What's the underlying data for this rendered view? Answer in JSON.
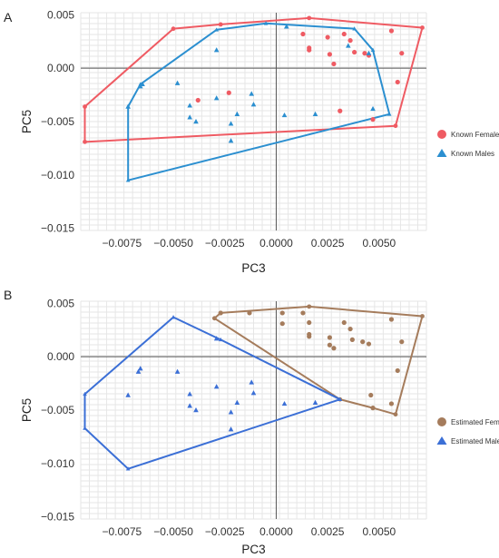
{
  "chart_data": [
    {
      "type": "scatter",
      "panel_label": "A",
      "xlabel": "PC3",
      "ylabel": "PC5",
      "xlim": [
        -0.0095,
        0.0073
      ],
      "ylim": [
        -0.0152,
        0.0052
      ],
      "x_ticks": [
        -0.0075,
        -0.005,
        -0.0025,
        0.0,
        0.0025,
        0.005
      ],
      "x_tick_labels": [
        "−0.0075",
        "−0.0050",
        "−0.0025",
        "0.0000",
        "0.0025",
        "0.0050"
      ],
      "y_ticks": [
        0.005,
        0.0,
        -0.005,
        -0.01,
        -0.015
      ],
      "y_tick_labels": [
        "0.005",
        "0.000",
        "−0.005",
        "−0.010",
        "−0.015"
      ],
      "grid": true,
      "legend_position": "right",
      "series": [
        {
          "name": "Known Females",
          "color": "#ef5b63",
          "marker": "circle",
          "points": [
            [
              -0.0038,
              -0.003
            ],
            [
              -0.0023,
              -0.0023
            ],
            [
              0.0016,
              0.0019
            ],
            [
              0.0016,
              0.0017
            ],
            [
              0.0026,
              0.0013
            ],
            [
              0.0028,
              0.0004
            ],
            [
              0.0033,
              0.0032
            ],
            [
              0.0031,
              -0.004
            ],
            [
              0.0038,
              0.0015
            ],
            [
              0.0043,
              0.0014
            ],
            [
              0.0045,
              0.0012
            ],
            [
              0.0047,
              -0.0048
            ],
            [
              0.0056,
              0.0035
            ],
            [
              0.0059,
              -0.0013
            ],
            [
              0.0061,
              0.0014
            ],
            [
              0.0036,
              0.0026
            ],
            [
              0.0025,
              0.0029
            ],
            [
              0.0013,
              0.0032
            ]
          ],
          "hull": [
            [
              -0.0093,
              -0.0069
            ],
            [
              -0.0093,
              -0.0036
            ],
            [
              -0.005,
              0.0037
            ],
            [
              -0.0027,
              0.0041
            ],
            [
              0.0016,
              0.0047
            ],
            [
              0.0071,
              0.0038
            ],
            [
              0.0058,
              -0.0054
            ]
          ]
        },
        {
          "name": "Known Males",
          "color": "#2b8fd0",
          "marker": "triangle",
          "points": [
            [
              -0.0072,
              -0.0036
            ],
            [
              -0.0066,
              -0.0017
            ],
            [
              -0.0065,
              -0.0015
            ],
            [
              -0.0048,
              -0.0014
            ],
            [
              -0.0042,
              -0.0035
            ],
            [
              -0.0042,
              -0.0046
            ],
            [
              -0.0039,
              -0.005
            ],
            [
              -0.0029,
              0.0017
            ],
            [
              -0.0029,
              -0.0028
            ],
            [
              -0.0022,
              -0.0052
            ],
            [
              -0.0019,
              -0.0043
            ],
            [
              -0.0012,
              -0.0024
            ],
            [
              -0.0011,
              -0.0034
            ],
            [
              -0.0022,
              -0.0068
            ],
            [
              0.0004,
              -0.0044
            ],
            [
              0.0019,
              -0.0043
            ],
            [
              0.0035,
              0.0021
            ],
            [
              0.0047,
              -0.0038
            ],
            [
              0.0045,
              0.0014
            ],
            [
              0.0005,
              0.0039
            ]
          ],
          "hull": [
            [
              -0.0072,
              -0.0105
            ],
            [
              -0.0072,
              -0.0036
            ],
            [
              -0.0066,
              -0.0015
            ],
            [
              -0.0029,
              0.0036
            ],
            [
              -0.0005,
              0.0042
            ],
            [
              0.0038,
              0.0037
            ],
            [
              0.0047,
              0.0017
            ],
            [
              0.0055,
              -0.0043
            ]
          ]
        }
      ]
    },
    {
      "type": "scatter",
      "panel_label": "B",
      "xlabel": "PC3",
      "ylabel": "PC5",
      "xlim": [
        -0.0095,
        0.0073
      ],
      "ylim": [
        -0.0152,
        0.0052
      ],
      "x_ticks": [
        -0.0075,
        -0.005,
        -0.0025,
        0.0,
        0.0025,
        0.005
      ],
      "x_tick_labels": [
        "−0.0075",
        "−0.0050",
        "−0.0025",
        "0.0000",
        "0.0025",
        "0.0050"
      ],
      "y_ticks": [
        0.005,
        0.0,
        -0.005,
        -0.01,
        -0.015
      ],
      "y_tick_labels": [
        "0.005",
        "0.000",
        "−0.005",
        "−0.010",
        "−0.015"
      ],
      "grid": true,
      "legend_position": "right",
      "series": [
        {
          "name": "Estimated Females",
          "color": "#a57c5c",
          "marker": "circle",
          "points": [
            [
              -0.0013,
              0.0041
            ],
            [
              -0.0027,
              0.0041
            ],
            [
              0.0003,
              0.0041
            ],
            [
              0.0003,
              0.0031
            ],
            [
              0.0013,
              0.0041
            ],
            [
              0.0016,
              0.0032
            ],
            [
              0.0016,
              0.0021
            ],
            [
              0.0016,
              0.0019
            ],
            [
              0.0026,
              0.0018
            ],
            [
              0.0028,
              0.0008
            ],
            [
              0.0033,
              0.0032
            ],
            [
              0.0036,
              0.0026
            ],
            [
              0.0037,
              0.0016
            ],
            [
              0.0042,
              0.0014
            ],
            [
              0.0045,
              0.0012
            ],
            [
              0.0046,
              -0.0036
            ],
            [
              0.0047,
              -0.0048
            ],
            [
              0.0056,
              0.0035
            ],
            [
              0.0056,
              -0.0044
            ],
            [
              0.0059,
              -0.0013
            ],
            [
              0.0061,
              0.0014
            ],
            [
              0.0026,
              0.0011
            ]
          ],
          "hull": [
            [
              -0.003,
              0.0036
            ],
            [
              -0.0027,
              0.0041
            ],
            [
              0.0016,
              0.0047
            ],
            [
              0.0071,
              0.0038
            ],
            [
              0.0058,
              -0.0054
            ],
            [
              0.0047,
              -0.0048
            ],
            [
              0.0031,
              -0.004
            ]
          ]
        },
        {
          "name": "Estimated Males",
          "color": "#3b6fd6",
          "marker": "triangle",
          "points": [
            [
              -0.0072,
              -0.0036
            ],
            [
              -0.0067,
              -0.0014
            ],
            [
              -0.0066,
              -0.0011
            ],
            [
              -0.0048,
              -0.0014
            ],
            [
              -0.0042,
              -0.0035
            ],
            [
              -0.0042,
              -0.0046
            ],
            [
              -0.0039,
              -0.005
            ],
            [
              -0.0029,
              0.0017
            ],
            [
              -0.0029,
              -0.0028
            ],
            [
              -0.0022,
              -0.0052
            ],
            [
              -0.0019,
              -0.0043
            ],
            [
              -0.0012,
              -0.0024
            ],
            [
              -0.0011,
              -0.0034
            ],
            [
              -0.0022,
              -0.0068
            ],
            [
              0.0004,
              -0.0044
            ],
            [
              0.0019,
              -0.0043
            ]
          ],
          "hull": [
            [
              -0.0072,
              -0.0105
            ],
            [
              -0.0093,
              -0.0067
            ],
            [
              -0.0093,
              -0.0035
            ],
            [
              -0.005,
              0.0037
            ],
            [
              -0.0027,
              0.0016
            ],
            [
              0.0031,
              -0.004
            ]
          ]
        }
      ]
    }
  ]
}
